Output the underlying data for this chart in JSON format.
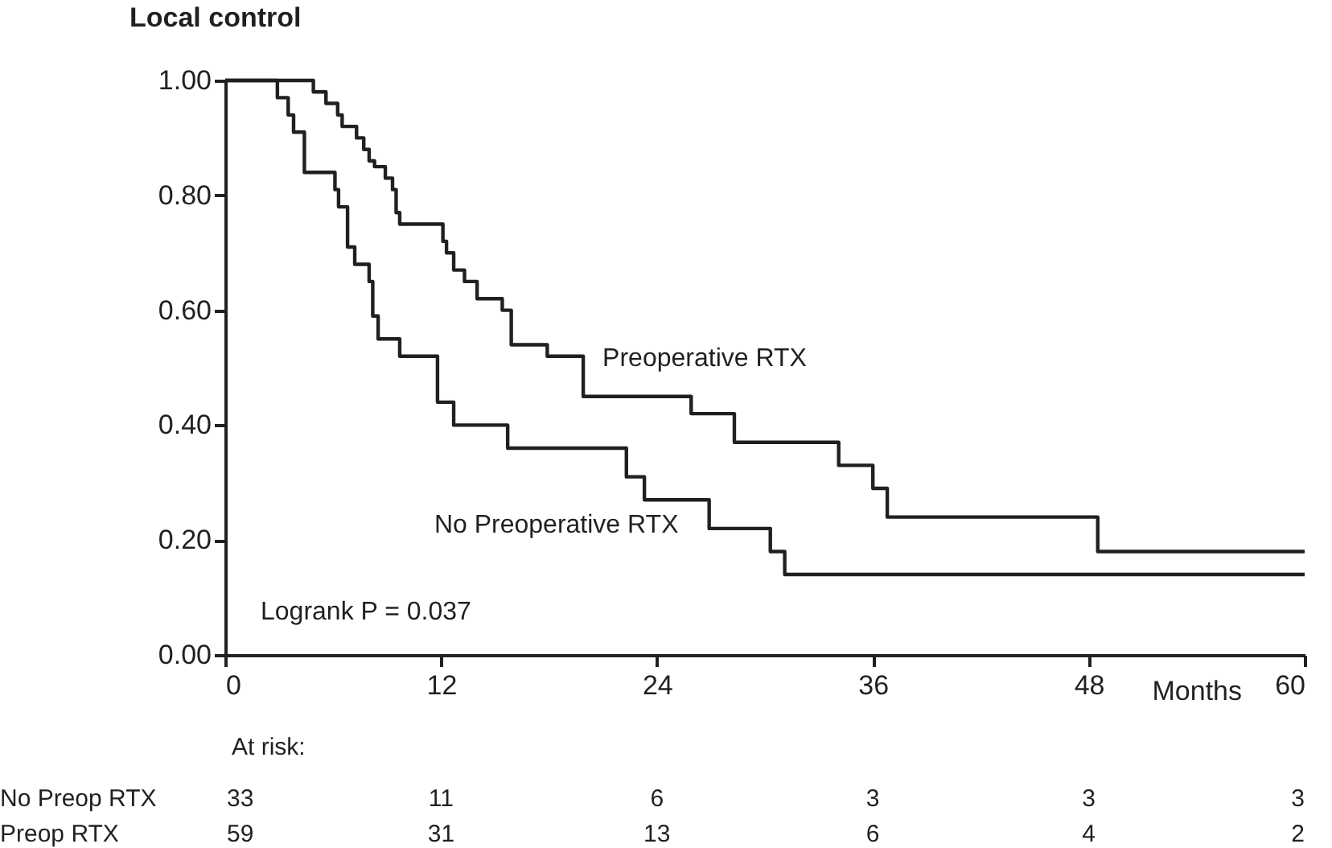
{
  "chart_data": {
    "type": "step",
    "ylabel": "Local control",
    "xlabel": "Months",
    "xlim": [
      0,
      60
    ],
    "xticks": [
      0,
      12,
      24,
      36,
      48,
      60
    ],
    "ylim": [
      0,
      1
    ],
    "yticks": [
      {
        "value": 0,
        "label": "0.00"
      },
      {
        "value": 0.2,
        "label": "0.20"
      },
      {
        "value": 0.4,
        "label": "0.40"
      },
      {
        "value": 0.6,
        "label": "0.60"
      },
      {
        "value": 0.8,
        "label": "0.80"
      },
      {
        "value": 1,
        "label": "1.00"
      }
    ],
    "grid": false,
    "line_style": "solid",
    "marker": "none",
    "series": [
      {
        "name": "Preoperative RTX",
        "color": "#231f20",
        "x": [
          0,
          4.9,
          5.6,
          6.25,
          6.5,
          7.3,
          7.7,
          8.0,
          8.3,
          8.9,
          9.3,
          9.5,
          9.7,
          12.1,
          12.3,
          12.7,
          13.3,
          14.0,
          15.4,
          15.9,
          17.9,
          19.9,
          25.9,
          28.3,
          34.1,
          36.0,
          36.8,
          48.5,
          60
        ],
        "values": [
          1.0,
          0.98,
          0.96,
          0.94,
          0.92,
          0.9,
          0.88,
          0.86,
          0.85,
          0.83,
          0.81,
          0.77,
          0.75,
          0.72,
          0.7,
          0.67,
          0.65,
          0.62,
          0.6,
          0.54,
          0.52,
          0.45,
          0.42,
          0.37,
          0.33,
          0.29,
          0.24,
          0.18,
          0.18
        ]
      },
      {
        "name": "No Preoperative RTX",
        "color": "#231f20",
        "x": [
          0,
          2.9,
          3.5,
          3.8,
          4.4,
          6.1,
          6.3,
          6.8,
          7.2,
          8.0,
          8.2,
          8.5,
          9.7,
          11.8,
          12.7,
          15.7,
          22.3,
          23.3,
          26.9,
          30.3,
          31.1,
          60
        ],
        "values": [
          1.0,
          0.97,
          0.94,
          0.91,
          0.84,
          0.81,
          0.78,
          0.71,
          0.68,
          0.65,
          0.59,
          0.55,
          0.52,
          0.44,
          0.4,
          0.36,
          0.31,
          0.27,
          0.22,
          0.18,
          0.14,
          0.14
        ]
      }
    ],
    "annotations": [
      "Logrank P = 0.037",
      "At risk:",
      "No Preop RTX",
      "33",
      "11",
      "6",
      "3",
      "3",
      "3",
      "Preop RTX",
      "59",
      "31",
      "13",
      "6",
      "4",
      "2"
    ]
  }
}
